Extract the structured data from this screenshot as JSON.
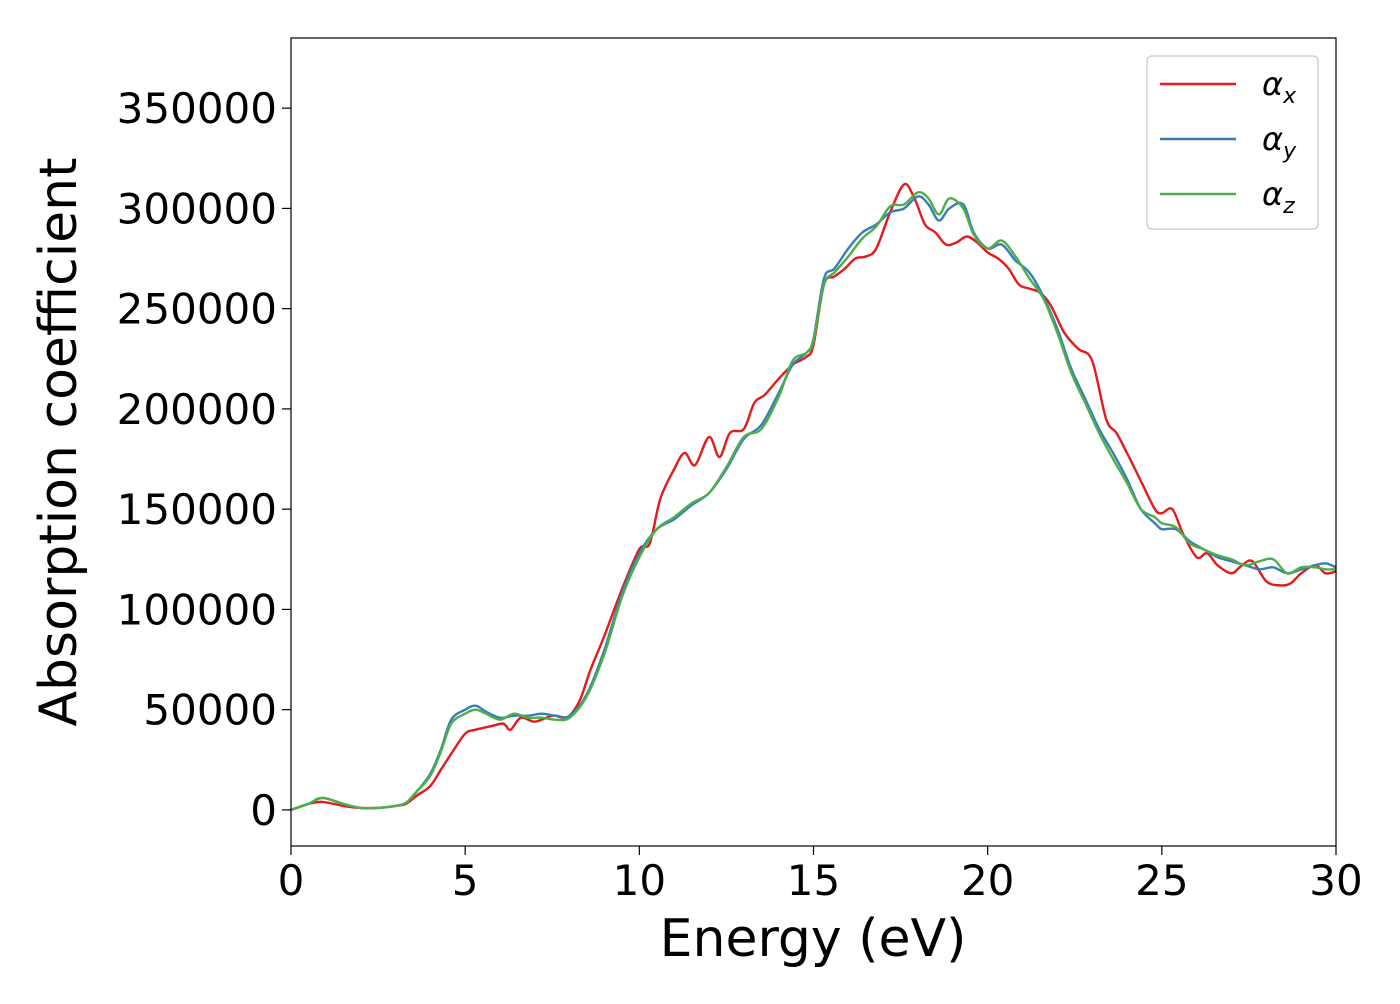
{
  "chart_data": {
    "type": "line",
    "title": "",
    "xlabel": "Energy (eV)",
    "ylabel": "Absorption coefficient",
    "xlim": [
      0,
      30
    ],
    "ylim": [
      -18000,
      385000
    ],
    "xticks": [
      0,
      5,
      10,
      15,
      20,
      25,
      30
    ],
    "yticks": [
      0,
      50000,
      100000,
      150000,
      200000,
      250000,
      300000,
      350000
    ],
    "grid": false,
    "legend_position": "top-right",
    "series": [
      {
        "name": "α_x",
        "name_base": "α",
        "name_sub": "x",
        "color": "#e41a1c",
        "x": [
          0,
          0.5,
          0.9,
          1.5,
          2,
          2.5,
          3,
          3.3,
          3.6,
          4,
          4.3,
          4.6,
          5,
          5.3,
          5.8,
          6.1,
          6.3,
          6.6,
          7,
          7.5,
          7.8,
          8,
          8.3,
          8.6,
          9,
          9.5,
          10,
          10.3,
          10.6,
          11,
          11.3,
          11.6,
          12,
          12.3,
          12.6,
          13,
          13.3,
          13.6,
          14,
          14.4,
          14.8,
          15,
          15.3,
          15.6,
          15.9,
          16.2,
          16.5,
          16.8,
          17.2,
          17.6,
          17.9,
          18.2,
          18.5,
          18.8,
          19.1,
          19.4,
          19.7,
          20,
          20.3,
          20.6,
          20.9,
          21.2,
          21.5,
          21.8,
          22.2,
          22.6,
          23,
          23.4,
          23.7,
          24,
          24.4,
          24.8,
          25,
          25.3,
          25.6,
          26,
          26.3,
          26.6,
          27,
          27.3,
          27.6,
          28,
          28.4,
          28.7,
          29,
          29.4,
          29.7,
          30
        ],
        "values": [
          0,
          3000,
          4000,
          2000,
          1000,
          1000,
          2000,
          3000,
          7000,
          12000,
          20000,
          28000,
          38000,
          40000,
          42000,
          43000,
          40000,
          46000,
          44000,
          47000,
          46000,
          47000,
          55000,
          70000,
          87000,
          110000,
          130000,
          133000,
          155000,
          170000,
          178000,
          172000,
          186000,
          176000,
          188000,
          190000,
          203000,
          207000,
          215000,
          222000,
          226000,
          232000,
          262000,
          266000,
          270000,
          275000,
          276000,
          280000,
          298000,
          312000,
          305000,
          292000,
          288000,
          282000,
          283000,
          286000,
          283000,
          278000,
          275000,
          270000,
          262000,
          260000,
          258000,
          252000,
          238000,
          230000,
          224000,
          195000,
          188000,
          178000,
          164000,
          150000,
          148000,
          150000,
          138000,
          126000,
          128000,
          122000,
          118000,
          122000,
          124000,
          114000,
          112000,
          113000,
          118000,
          122000,
          118000,
          119000
        ]
      },
      {
        "name": "α_y",
        "name_base": "α",
        "name_sub": "y",
        "color": "#377eb8",
        "x": [
          0,
          0.5,
          0.9,
          1.5,
          2,
          2.5,
          3,
          3.3,
          3.6,
          4,
          4.3,
          4.6,
          5,
          5.3,
          5.6,
          6,
          6.4,
          6.8,
          7.2,
          7.6,
          8,
          8.5,
          9,
          9.5,
          10,
          10.5,
          11,
          11.5,
          12,
          12.5,
          13,
          13.5,
          14,
          14.4,
          14.8,
          15,
          15.3,
          15.6,
          16,
          16.4,
          16.8,
          17.2,
          17.6,
          18,
          18.3,
          18.6,
          18.9,
          19.3,
          19.6,
          20,
          20.4,
          20.8,
          21.2,
          21.6,
          22,
          22.4,
          22.8,
          23.2,
          23.6,
          24,
          24.4,
          24.8,
          25,
          25.4,
          25.8,
          26.2,
          26.6,
          27,
          27.4,
          27.8,
          28.2,
          28.6,
          29,
          29.4,
          29.7,
          30
        ],
        "values": [
          0,
          3000,
          6000,
          3000,
          1000,
          1000,
          2000,
          3500,
          9000,
          18000,
          30000,
          45000,
          50000,
          52000,
          49000,
          46000,
          47000,
          47000,
          48000,
          47000,
          47000,
          58000,
          80000,
          108000,
          128000,
          140000,
          145000,
          152000,
          158000,
          170000,
          185000,
          192000,
          208000,
          222000,
          228000,
          235000,
          265000,
          270000,
          280000,
          288000,
          292000,
          298000,
          300000,
          306000,
          302000,
          294000,
          300000,
          302000,
          288000,
          280000,
          282000,
          274000,
          268000,
          256000,
          240000,
          220000,
          205000,
          190000,
          178000,
          165000,
          150000,
          143000,
          140000,
          140000,
          134000,
          130000,
          126000,
          124000,
          122000,
          120000,
          121000,
          118000,
          120000,
          122000,
          123000,
          121000
        ]
      },
      {
        "name": "α_z",
        "name_base": "α",
        "name_sub": "z",
        "color": "#4daf4a",
        "x": [
          0,
          0.5,
          0.9,
          1.5,
          2,
          2.5,
          3,
          3.3,
          3.6,
          4,
          4.3,
          4.6,
          5,
          5.3,
          5.6,
          6,
          6.4,
          6.8,
          7.2,
          7.6,
          8,
          8.5,
          9,
          9.5,
          10,
          10.5,
          11,
          11.5,
          12,
          12.5,
          13,
          13.5,
          14,
          14.4,
          14.8,
          15,
          15.3,
          15.6,
          16,
          16.4,
          16.8,
          17.2,
          17.6,
          18,
          18.3,
          18.6,
          18.9,
          19.3,
          19.6,
          20,
          20.4,
          20.8,
          21.2,
          21.6,
          22,
          22.4,
          22.8,
          23.2,
          23.6,
          24,
          24.4,
          24.8,
          25,
          25.4,
          25.8,
          26.2,
          26.6,
          27,
          27.4,
          27.8,
          28.2,
          28.6,
          29,
          29.4,
          29.7,
          30
        ],
        "values": [
          0,
          3000,
          6000,
          3000,
          1000,
          1000,
          2000,
          3500,
          9000,
          17000,
          29000,
          43000,
          48000,
          50000,
          48000,
          45000,
          48000,
          46000,
          46000,
          45000,
          46000,
          57000,
          78000,
          106000,
          126000,
          140000,
          146000,
          153000,
          158000,
          171000,
          186000,
          190000,
          206000,
          224000,
          228000,
          234000,
          262000,
          268000,
          276000,
          285000,
          291000,
          301000,
          302000,
          308000,
          305000,
          297000,
          305000,
          300000,
          287000,
          280000,
          284000,
          276000,
          265000,
          255000,
          238000,
          218000,
          203000,
          188000,
          175000,
          163000,
          150000,
          146000,
          143000,
          141000,
          133000,
          130000,
          127000,
          125000,
          122000,
          124000,
          125000,
          118000,
          121000,
          121000,
          120000,
          120000
        ]
      }
    ]
  }
}
